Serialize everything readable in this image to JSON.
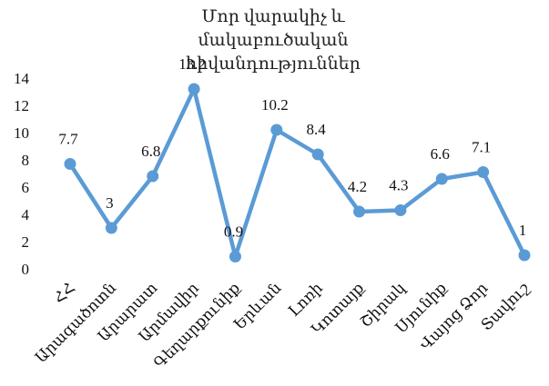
{
  "chart_data": {
    "type": "line",
    "title": "Մոր վարակիչ և մակաբուծական հիվանդություններ",
    "categories": [
      "ՀՀ",
      "Արագածոտն",
      "Արարատ",
      "Արմավիր",
      "Գեղարքունիք",
      "Երևան",
      "Լոռի",
      "Կոտայք",
      "Շիրակ",
      "Սյունիք",
      "Վայոց Ձոր",
      "Տավուշ"
    ],
    "values": [
      7.7,
      3,
      6.8,
      13.2,
      0.9,
      10.2,
      8.4,
      4.2,
      4.3,
      6.6,
      7.1,
      1
    ],
    "color": "#5b9bd5",
    "ylim": [
      0,
      14
    ],
    "yticks": [
      0,
      2,
      4,
      6,
      8,
      10,
      12,
      14
    ],
    "grid": false
  }
}
